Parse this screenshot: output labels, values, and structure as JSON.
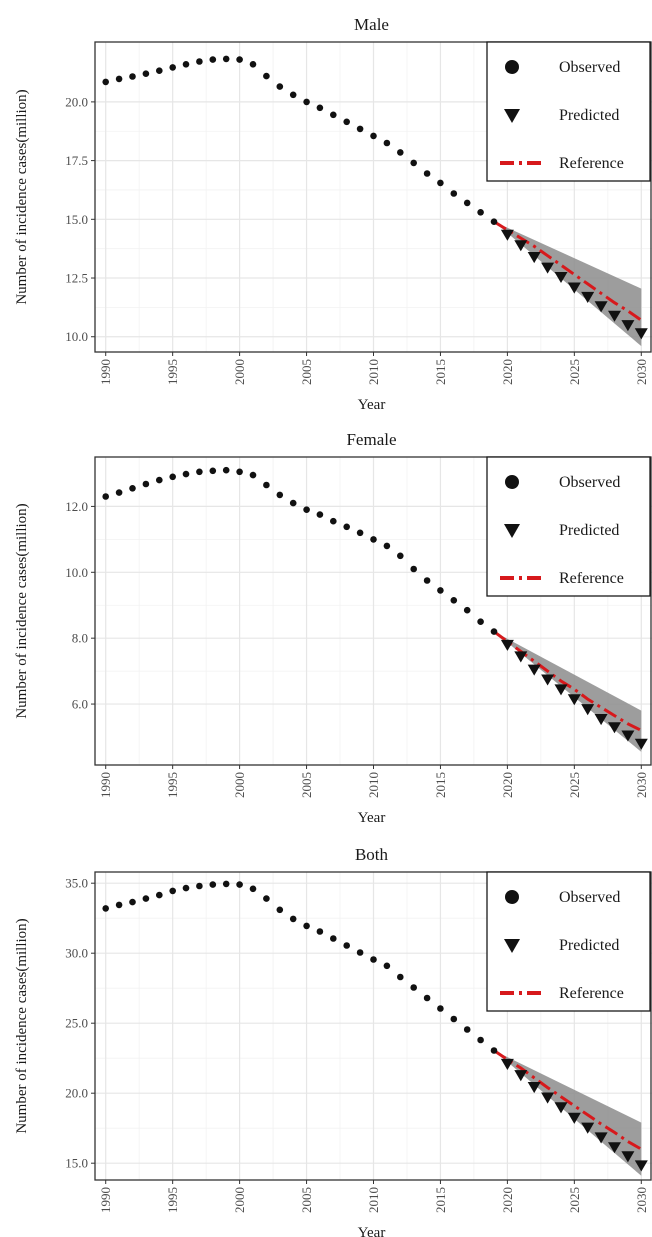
{
  "legend": {
    "observed": "Observed",
    "predicted": "Predicted",
    "reference": "Reference"
  },
  "colors": {
    "points": "#111111",
    "reference": "#d7191c",
    "band": "#8c8c8c",
    "grid_major": "#e6e6e6",
    "grid_minor": "#f2f2f2",
    "border": "#333333"
  },
  "chart_data": [
    {
      "type": "scatter",
      "title": "Male",
      "xlabel": "Year",
      "ylabel": "Number of incidence cases(million)",
      "xlim": [
        1989.2,
        2030.8
      ],
      "ylim": [
        9.35,
        22.55
      ],
      "xticks": [
        1990,
        1995,
        2000,
        2005,
        2010,
        2015,
        2020,
        2025,
        2030
      ],
      "yticks": [
        10.0,
        12.5,
        15.0,
        17.5,
        20.0
      ],
      "ytick_labels": [
        "10.0",
        "12.5",
        "15.0",
        "17.5",
        "20.0"
      ],
      "legend_position": "top-right",
      "observed": {
        "x": [
          1990,
          1991,
          1992,
          1993,
          1994,
          1995,
          1996,
          1997,
          1998,
          1999,
          2000,
          2001,
          2002,
          2003,
          2004,
          2005,
          2006,
          2007,
          2008,
          2009,
          2010,
          2011,
          2012,
          2013,
          2014,
          2015,
          2016,
          2017,
          2018,
          2019
        ],
        "y": [
          20.85,
          20.98,
          21.08,
          21.2,
          21.33,
          21.47,
          21.6,
          21.72,
          21.8,
          21.83,
          21.8,
          21.6,
          21.1,
          20.65,
          20.3,
          20.0,
          19.75,
          19.45,
          19.15,
          18.85,
          18.55,
          18.25,
          17.85,
          17.4,
          16.95,
          16.55,
          16.1,
          15.7,
          15.3,
          14.9
        ]
      },
      "predicted": {
        "x": [
          2020,
          2021,
          2022,
          2023,
          2024,
          2025,
          2026,
          2027,
          2028,
          2029,
          2030
        ],
        "y": [
          14.35,
          13.9,
          13.4,
          12.95,
          12.55,
          12.1,
          11.7,
          11.3,
          10.9,
          10.5,
          10.15
        ]
      },
      "reference": {
        "x": [
          2019,
          2020,
          2021,
          2022,
          2023,
          2024,
          2025,
          2026,
          2027,
          2028,
          2029,
          2030
        ],
        "y": [
          14.9,
          14.55,
          14.2,
          13.85,
          13.45,
          13.05,
          12.65,
          12.25,
          11.85,
          11.45,
          11.1,
          10.7
        ]
      },
      "band": {
        "x": [
          2019,
          2030
        ],
        "lower": [
          14.9,
          9.6
        ],
        "upper": [
          14.9,
          12.05
        ]
      }
    },
    {
      "type": "scatter",
      "title": "Female",
      "xlabel": "Year",
      "ylabel": "Number of incidence cases(million)",
      "xlim": [
        1989.2,
        2030.8
      ],
      "ylim": [
        4.15,
        13.5
      ],
      "xticks": [
        1990,
        1995,
        2000,
        2005,
        2010,
        2015,
        2020,
        2025,
        2030
      ],
      "yticks": [
        6.0,
        8.0,
        10.0,
        12.0
      ],
      "ytick_labels": [
        "6.0",
        "8.0",
        "10.0",
        "12.0"
      ],
      "legend_position": "top-right",
      "observed": {
        "x": [
          1990,
          1991,
          1992,
          1993,
          1994,
          1995,
          1996,
          1997,
          1998,
          1999,
          2000,
          2001,
          2002,
          2003,
          2004,
          2005,
          2006,
          2007,
          2008,
          2009,
          2010,
          2011,
          2012,
          2013,
          2014,
          2015,
          2016,
          2017,
          2018,
          2019
        ],
        "y": [
          12.3,
          12.42,
          12.55,
          12.68,
          12.8,
          12.9,
          12.98,
          13.05,
          13.08,
          13.1,
          13.05,
          12.95,
          12.65,
          12.35,
          12.1,
          11.9,
          11.75,
          11.55,
          11.38,
          11.2,
          11.0,
          10.8,
          10.5,
          10.1,
          9.75,
          9.45,
          9.15,
          8.85,
          8.5,
          8.2
        ]
      },
      "predicted": {
        "x": [
          2020,
          2021,
          2022,
          2023,
          2024,
          2025,
          2026,
          2027,
          2028,
          2029,
          2030
        ],
        "y": [
          7.8,
          7.45,
          7.05,
          6.75,
          6.45,
          6.15,
          5.85,
          5.55,
          5.3,
          5.05,
          4.8
        ]
      },
      "reference": {
        "x": [
          2019,
          2020,
          2021,
          2022,
          2023,
          2024,
          2025,
          2026,
          2027,
          2028,
          2029,
          2030
        ],
        "y": [
          8.2,
          7.9,
          7.6,
          7.3,
          7.0,
          6.7,
          6.45,
          6.15,
          5.9,
          5.65,
          5.4,
          5.2
        ]
      },
      "band": {
        "x": [
          2019,
          2030
        ],
        "lower": [
          8.2,
          4.55
        ],
        "upper": [
          8.2,
          5.8
        ]
      }
    },
    {
      "type": "scatter",
      "title": "Both",
      "xlabel": "Year",
      "ylabel": "Number of incidence cases(million)",
      "xlim": [
        1989.2,
        2030.8
      ],
      "ylim": [
        13.8,
        35.8
      ],
      "xticks": [
        1990,
        1995,
        2000,
        2005,
        2010,
        2015,
        2020,
        2025,
        2030
      ],
      "yticks": [
        15.0,
        20.0,
        25.0,
        30.0,
        35.0
      ],
      "ytick_labels": [
        "15.0",
        "20.0",
        "25.0",
        "30.0",
        "35.0"
      ],
      "legend_position": "top-right",
      "observed": {
        "x": [
          1990,
          1991,
          1992,
          1993,
          1994,
          1995,
          1996,
          1997,
          1998,
          1999,
          2000,
          2001,
          2002,
          2003,
          2004,
          2005,
          2006,
          2007,
          2008,
          2009,
          2010,
          2011,
          2012,
          2013,
          2014,
          2015,
          2016,
          2017,
          2018,
          2019
        ],
        "y": [
          33.2,
          33.45,
          33.65,
          33.9,
          34.15,
          34.45,
          34.65,
          34.8,
          34.9,
          34.95,
          34.9,
          34.6,
          33.9,
          33.1,
          32.45,
          31.95,
          31.55,
          31.05,
          30.55,
          30.05,
          29.55,
          29.1,
          28.3,
          27.55,
          26.8,
          26.05,
          25.3,
          24.55,
          23.8,
          23.05
        ]
      },
      "predicted": {
        "x": [
          2020,
          2021,
          2022,
          2023,
          2024,
          2025,
          2026,
          2027,
          2028,
          2029,
          2030
        ],
        "y": [
          22.1,
          21.3,
          20.45,
          19.7,
          19.0,
          18.25,
          17.55,
          16.85,
          16.15,
          15.5,
          14.85
        ]
      },
      "reference": {
        "x": [
          2019,
          2020,
          2021,
          2022,
          2023,
          2024,
          2025,
          2026,
          2027,
          2028,
          2029,
          2030
        ],
        "y": [
          23.05,
          22.4,
          21.8,
          21.1,
          20.4,
          19.75,
          19.1,
          18.45,
          17.8,
          17.2,
          16.55,
          16.0
        ]
      },
      "band": {
        "x": [
          2019,
          2030
        ],
        "lower": [
          23.05,
          14.1
        ],
        "upper": [
          23.05,
          17.9
        ]
      }
    }
  ]
}
